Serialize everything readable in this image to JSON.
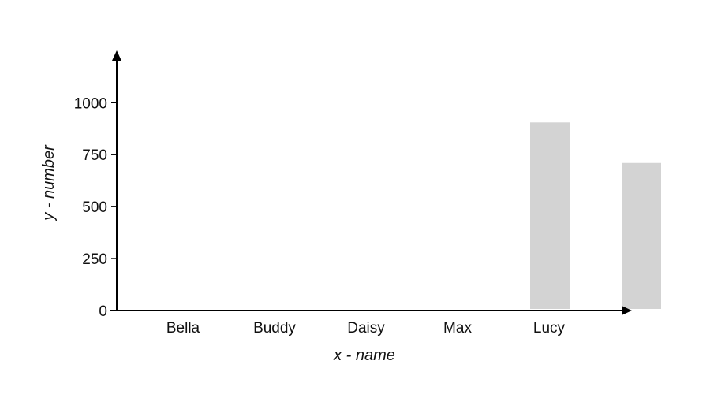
{
  "chart_data": {
    "type": "bar",
    "title": "",
    "xlabel": "x - name",
    "ylabel": "y - number",
    "categories": [
      "Bella",
      "Buddy",
      "Daisy",
      "Max",
      "Lucy",
      ""
    ],
    "values": [
      0,
      0,
      0,
      0,
      905,
      710
    ],
    "ylim": [
      0,
      1200
    ],
    "yticks": [
      0,
      250,
      500,
      750,
      1000
    ],
    "ytick_labels": [
      "0",
      "250",
      "500",
      "750",
      "1000"
    ],
    "grid": false,
    "legend": "none",
    "colors": {
      "bar": "#d3d3d3",
      "axis": "#000000",
      "text": "#111111"
    }
  }
}
